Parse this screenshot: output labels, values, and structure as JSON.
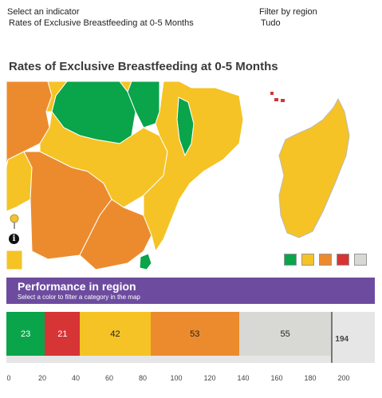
{
  "controls": {
    "indicator_label": "Select an indicator",
    "indicator_value": "Rates of Exclusive Breastfeeding at 0-5 Months",
    "region_label": "Filter by region",
    "region_value": "Tudo"
  },
  "map": {
    "title": "Rates of Exclusive Breastfeeding at 0-5 Months",
    "legend": [
      {
        "name": "green",
        "color": "#0aa44b"
      },
      {
        "name": "yellow",
        "color": "#f5c325"
      },
      {
        "name": "orange",
        "color": "#ec8b2e"
      },
      {
        "name": "red",
        "color": "#d63435"
      },
      {
        "name": "grey",
        "color": "#d8d8d4"
      }
    ]
  },
  "performance": {
    "title": "Performance in region",
    "subtitle": "Select a color to filter a category in the map",
    "total": 194
  },
  "chart_data": {
    "type": "bar",
    "orientation": "horizontal-stacked",
    "categories": [
      "green",
      "red",
      "yellow",
      "orange",
      "grey"
    ],
    "values": [
      23,
      21,
      42,
      53,
      55
    ],
    "colors": [
      "#0aa44b",
      "#d63435",
      "#f5c325",
      "#ec8b2e",
      "#d8d8d4"
    ],
    "total": 194,
    "xlim": [
      0,
      220
    ],
    "ticks": [
      "0",
      "20",
      "40",
      "60",
      "80",
      "100",
      "120",
      "140",
      "160",
      "180",
      "200"
    ]
  }
}
